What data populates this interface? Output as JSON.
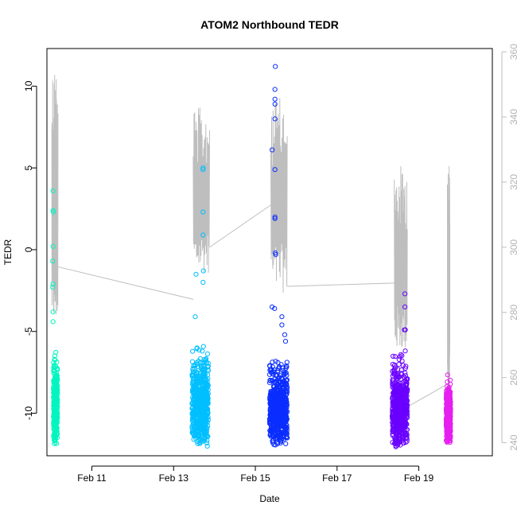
{
  "chart_data": {
    "type": "scatter",
    "title": "ATOM2 Northbound TEDR",
    "xlabel": "Date",
    "ylabel": "TEDR",
    "x_ticks": [
      {
        "label": "Feb 11",
        "day": 11
      },
      {
        "label": "Feb 13",
        "day": 13
      },
      {
        "label": "Feb 15",
        "day": 15
      },
      {
        "label": "Feb 17",
        "day": 17
      },
      {
        "label": "Feb 19",
        "day": 19
      }
    ],
    "xlim_day": [
      9.9,
      20.8
    ],
    "ylim": [
      -12.6,
      12.3
    ],
    "y_ticks": [
      -10,
      -5,
      0,
      5,
      10
    ],
    "right_axis": {
      "ylim": [
        236,
        361
      ],
      "ticks": [
        240,
        260,
        280,
        300,
        320,
        340,
        360
      ],
      "color": "#bebebe"
    },
    "clusters": [
      {
        "day_range": [
          10.06,
          10.16
        ],
        "color": "#00F5C0",
        "dense_range": [
          -11.9,
          -5.9
        ],
        "outliers": [
          {
            "day": 10.05,
            "y": 3.6
          },
          {
            "day": 10.05,
            "y": 2.4
          },
          {
            "day": 10.06,
            "y": 2.3
          },
          {
            "day": 10.05,
            "y": 0.2
          },
          {
            "day": 10.04,
            "y": -0.7
          },
          {
            "day": 10.05,
            "y": -2.1
          },
          {
            "day": 10.04,
            "y": -2.3
          },
          {
            "day": 10.05,
            "y": -3.8
          },
          {
            "day": 10.05,
            "y": -4.4
          }
        ]
      },
      {
        "day_range": [
          13.45,
          13.85
        ],
        "color": "#00BFFF",
        "dense_range": [
          -12.1,
          -5.3
        ],
        "outliers": [
          {
            "day": 13.72,
            "y": 5.0
          },
          {
            "day": 13.72,
            "y": 4.9
          },
          {
            "day": 13.72,
            "y": 2.3
          },
          {
            "day": 13.72,
            "y": 0.9
          },
          {
            "day": 13.73,
            "y": -1.3
          },
          {
            "day": 13.55,
            "y": -1.5
          },
          {
            "day": 13.72,
            "y": -2.0
          },
          {
            "day": 13.53,
            "y": -4.1
          }
        ]
      },
      {
        "day_range": [
          15.35,
          15.78
        ],
        "color": "#0A2DFF",
        "dense_range": [
          -12.0,
          -6.2
        ],
        "outliers": [
          {
            "day": 15.49,
            "y": 11.2
          },
          {
            "day": 15.48,
            "y": 9.8
          },
          {
            "day": 15.48,
            "y": 9.2
          },
          {
            "day": 15.48,
            "y": 8.9
          },
          {
            "day": 15.48,
            "y": 8.0
          },
          {
            "day": 15.41,
            "y": 6.1
          },
          {
            "day": 15.48,
            "y": 4.9
          },
          {
            "day": 15.48,
            "y": 2.0
          },
          {
            "day": 15.48,
            "y": 1.9
          },
          {
            "day": 15.49,
            "y": -0.2
          },
          {
            "day": 15.5,
            "y": -0.3
          },
          {
            "day": 15.41,
            "y": -3.5
          },
          {
            "day": 15.47,
            "y": -3.6
          },
          {
            "day": 15.65,
            "y": -4.1
          },
          {
            "day": 15.65,
            "y": -4.6
          },
          {
            "day": 15.72,
            "y": -5.2
          },
          {
            "day": 15.74,
            "y": -5.6
          }
        ]
      },
      {
        "day_range": [
          18.35,
          18.72
        ],
        "color": "#6A00FF",
        "dense_range": [
          -12.2,
          -5.8
        ],
        "outliers": [
          {
            "day": 18.66,
            "y": -2.7
          },
          {
            "day": 18.66,
            "y": -3.5
          },
          {
            "day": 18.65,
            "y": -4.9
          },
          {
            "day": 18.67,
            "y": -4.9
          }
        ]
      },
      {
        "day_range": [
          19.67,
          19.78
        ],
        "color": "#E61FF0",
        "dense_range": [
          -12.0,
          -7.3
        ],
        "outliers": []
      }
    ],
    "secondary_series": {
      "color": "#bebebe",
      "segments": [
        {
          "day_range": [
            10.02,
            10.17
          ],
          "low": 276,
          "high": 356
        },
        {
          "day_range": [
            13.48,
            13.88
          ],
          "low": 292,
          "high": 343
        },
        {
          "day_range": [
            15.38,
            15.78
          ],
          "low": 286,
          "high": 346
        },
        {
          "day_range": [
            18.4,
            18.72
          ],
          "low": 268,
          "high": 325
        },
        {
          "day_range": [
            19.7,
            19.76
          ],
          "low": 250,
          "high": 326
        }
      ],
      "connectors": [
        {
          "from": {
            "day": 10.17,
            "value": 294
          },
          "to": {
            "day": 13.48,
            "value": 284
          }
        },
        {
          "from": {
            "day": 13.88,
            "value": 300
          },
          "to": {
            "day": 15.38,
            "value": 313
          }
        },
        {
          "from": {
            "day": 15.78,
            "value": 288
          },
          "to": {
            "day": 18.4,
            "value": 289
          }
        },
        {
          "from": {
            "day": 18.72,
            "value": 251
          },
          "to": {
            "day": 19.7,
            "value": 258
          }
        }
      ]
    }
  }
}
